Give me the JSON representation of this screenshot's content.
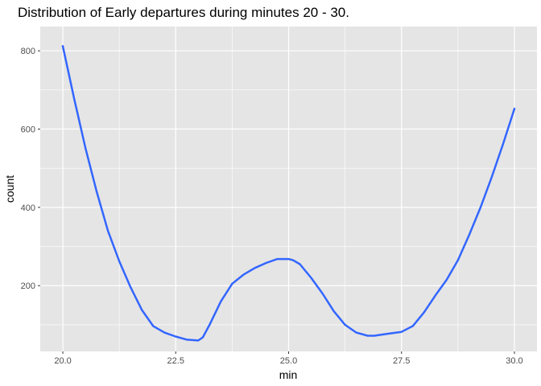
{
  "chart_data": {
    "type": "line",
    "title": "Distribution of Early departures during minutes 20 - 30.",
    "xlabel": "min",
    "ylabel": "count",
    "xlim": [
      19.5,
      30.5
    ],
    "ylim": [
      32,
      862
    ],
    "x_ticks": [
      20.0,
      22.5,
      25.0,
      27.5,
      30.0
    ],
    "x_tick_labels": [
      "20.0",
      "22.5",
      "25.0",
      "27.5",
      "30.0"
    ],
    "y_ticks": [
      200,
      400,
      600,
      800
    ],
    "y_tick_labels": [
      "200",
      "400",
      "600",
      "800"
    ],
    "grid": true,
    "panel_color": "#e5e5e5",
    "grid_color": "#ffffff",
    "series": [
      {
        "color": "#3366ff",
        "x": [
          20.0,
          20.25,
          20.5,
          20.75,
          21.0,
          21.25,
          21.5,
          21.75,
          22.0,
          22.25,
          22.5,
          22.75,
          23.0,
          23.1,
          23.25,
          23.5,
          23.75,
          24.0,
          24.25,
          24.5,
          24.75,
          25.0,
          25.1,
          25.25,
          25.5,
          25.75,
          26.0,
          26.25,
          26.5,
          26.75,
          26.9,
          27.0,
          27.25,
          27.5,
          27.75,
          28.0,
          28.25,
          28.5,
          28.75,
          29.0,
          29.25,
          29.5,
          29.75,
          30.0
        ],
        "y": [
          812,
          678,
          552,
          440,
          340,
          262,
          196,
          138,
          97,
          80,
          70,
          62,
          60,
          68,
          100,
          160,
          205,
          228,
          245,
          258,
          268,
          268,
          265,
          255,
          220,
          180,
          135,
          100,
          80,
          72,
          72,
          74,
          78,
          82,
          97,
          132,
          175,
          215,
          265,
          330,
          400,
          478,
          562,
          652
        ]
      }
    ]
  }
}
